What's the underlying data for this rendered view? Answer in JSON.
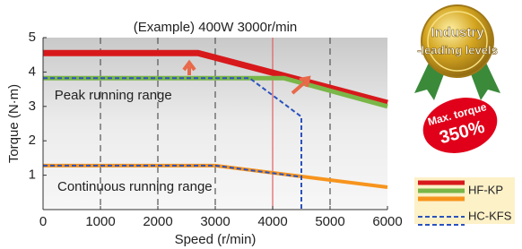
{
  "chart_data": {
    "type": "line",
    "title": "(Example) 400W 3000r/min",
    "x_label": "Speed (r/min)",
    "y_label": "Torque (N·m)",
    "xlim": [
      0,
      6000
    ],
    "xticks": [
      0,
      1000,
      2000,
      3000,
      4000,
      5000,
      6000
    ],
    "ylim": [
      0,
      5
    ],
    "yticks": [
      1,
      2,
      3,
      4,
      5
    ],
    "grid_x": [
      1000,
      2000,
      3000,
      5000
    ],
    "grid_color": "#555555",
    "reference_x": 4000,
    "reference_color": "#e06060",
    "series": [
      {
        "color": "#d7191c",
        "width": 7,
        "dashed": false,
        "x": [
          0,
          2700,
          6000
        ],
        "values": [
          4.55,
          4.55,
          3.1
        ]
      },
      {
        "name": "HF-KP",
        "color": "#7ab648",
        "width": 5,
        "dashed": false,
        "x": [
          0,
          4200,
          6000
        ],
        "values": [
          3.82,
          3.82,
          3.0
        ]
      },
      {
        "color": "#f7941d",
        "width": 4,
        "dashed": false,
        "x": [
          0,
          3000,
          6000
        ],
        "values": [
          1.28,
          1.28,
          0.65
        ]
      },
      {
        "name": "HC-KFS",
        "color": "#2a52be",
        "width": 2,
        "dashed": true,
        "x": [
          0,
          3600,
          4500,
          4500
        ],
        "values": [
          3.82,
          3.82,
          2.7,
          0
        ]
      },
      {
        "color": "#2a52be",
        "width": 2,
        "dashed": true,
        "x": [
          0,
          3000,
          4500
        ],
        "values": [
          1.28,
          1.28,
          0.95
        ]
      }
    ],
    "annotations": [
      {
        "text": "Peak running range",
        "x": 200,
        "y": 3.3
      },
      {
        "text": "Continuous running range",
        "x": 250,
        "y": 0.65
      }
    ],
    "medal": {
      "line1": "Industry",
      "line2": "-leading levels"
    },
    "badge": {
      "line1": "Max. torque",
      "line2": "350%"
    }
  }
}
